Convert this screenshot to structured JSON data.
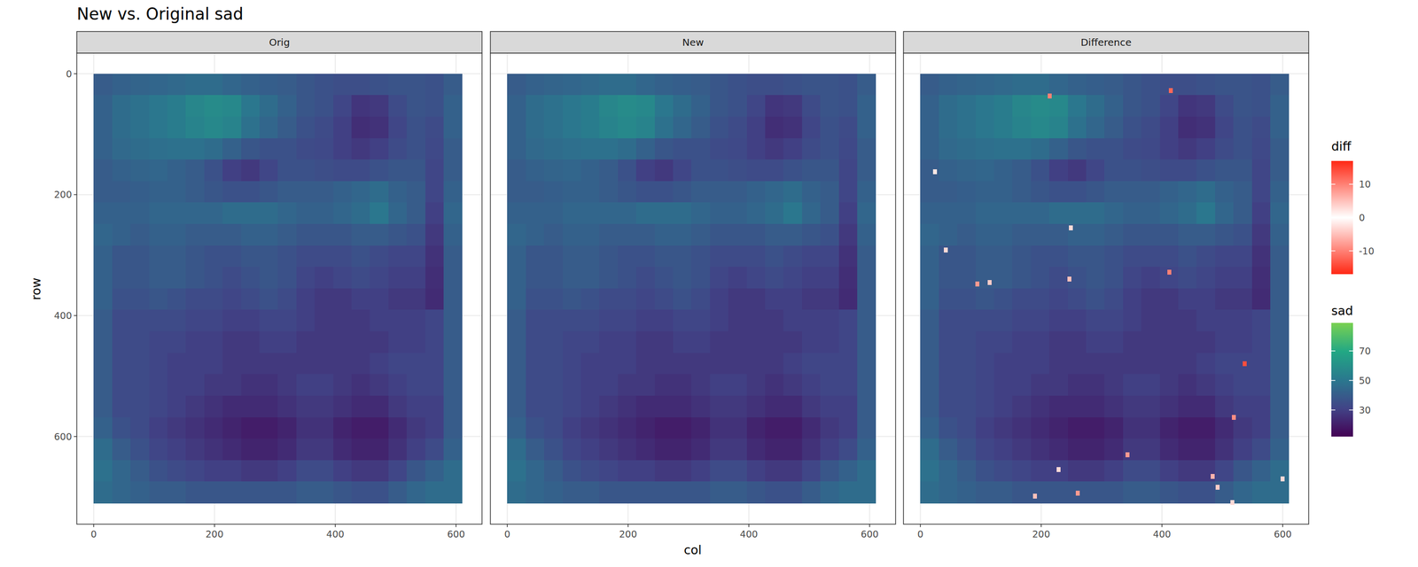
{
  "chart_data": {
    "type": "heatmap",
    "title": "New vs. Original sad",
    "x_label": "col",
    "y_label": "row",
    "panels": [
      "Orig",
      "New",
      "Difference"
    ],
    "xlim": [
      -28,
      643
    ],
    "ylim": [
      -34,
      745
    ],
    "xticks": [
      0,
      200,
      400,
      600
    ],
    "yticks": [
      0,
      200,
      400,
      600
    ],
    "grid": true,
    "sad": {
      "title": "sad",
      "range": [
        12,
        89
      ],
      "ticks": [
        30,
        50,
        70
      ],
      "x_edges": [
        0,
        30.5,
        61,
        91.5,
        122,
        152.5,
        183,
        213.5,
        244,
        274.5,
        305,
        335.5,
        366,
        396.5,
        427,
        457.5,
        488,
        518.5,
        549,
        579.5,
        610
      ],
      "y_edges": [
        0,
        35.5,
        71,
        106.5,
        142,
        177.5,
        213,
        248.5,
        284,
        319.5,
        355,
        390.5,
        426,
        461.5,
        497,
        532.5,
        568,
        603.5,
        639,
        674.5,
        710
      ],
      "values": [
        [
          40,
          42,
          43,
          44,
          45,
          46,
          46,
          44,
          42,
          41,
          40,
          38,
          36,
          35,
          35,
          36,
          37,
          37,
          36,
          40
        ],
        [
          42,
          46,
          48,
          50,
          52,
          56,
          58,
          57,
          50,
          46,
          42,
          38,
          36,
          32,
          27,
          28,
          34,
          37,
          36,
          42
        ],
        [
          42,
          46,
          48,
          50,
          52,
          55,
          57,
          55,
          48,
          44,
          40,
          36,
          34,
          30,
          25,
          26,
          32,
          36,
          34,
          42
        ],
        [
          42,
          45,
          46,
          47,
          48,
          48,
          46,
          42,
          38,
          36,
          36,
          34,
          33,
          30,
          28,
          30,
          34,
          36,
          33,
          40
        ],
        [
          40,
          42,
          43,
          44,
          42,
          40,
          36,
          30,
          28,
          32,
          36,
          36,
          35,
          34,
          34,
          36,
          38,
          38,
          32,
          40
        ],
        [
          40,
          40,
          41,
          42,
          42,
          40,
          38,
          36,
          36,
          38,
          40,
          40,
          40,
          42,
          44,
          46,
          42,
          40,
          32,
          42
        ],
        [
          42,
          42,
          42,
          44,
          44,
          44,
          44,
          46,
          46,
          46,
          44,
          42,
          42,
          44,
          46,
          50,
          44,
          40,
          30,
          44
        ],
        [
          44,
          42,
          40,
          42,
          42,
          40,
          40,
          40,
          42,
          42,
          40,
          38,
          38,
          38,
          40,
          40,
          38,
          36,
          28,
          42
        ],
        [
          42,
          38,
          38,
          40,
          40,
          38,
          36,
          36,
          38,
          38,
          36,
          34,
          34,
          34,
          36,
          34,
          32,
          32,
          26,
          40
        ],
        [
          42,
          38,
          38,
          40,
          40,
          38,
          36,
          34,
          36,
          38,
          36,
          32,
          30,
          32,
          34,
          32,
          30,
          30,
          25,
          40
        ],
        [
          42,
          36,
          36,
          38,
          36,
          34,
          34,
          32,
          34,
          36,
          34,
          30,
          28,
          28,
          30,
          30,
          28,
          28,
          24,
          40
        ],
        [
          40,
          34,
          34,
          34,
          34,
          32,
          32,
          30,
          30,
          32,
          32,
          30,
          28,
          28,
          28,
          30,
          30,
          30,
          32,
          40
        ],
        [
          40,
          34,
          34,
          32,
          32,
          30,
          30,
          28,
          28,
          30,
          30,
          28,
          28,
          28,
          28,
          28,
          30,
          30,
          32,
          40
        ],
        [
          40,
          34,
          34,
          32,
          30,
          30,
          30,
          28,
          28,
          28,
          28,
          28,
          28,
          28,
          28,
          30,
          32,
          32,
          32,
          40
        ],
        [
          40,
          34,
          34,
          32,
          30,
          30,
          28,
          28,
          26,
          26,
          28,
          30,
          30,
          28,
          26,
          28,
          30,
          32,
          32,
          40
        ],
        [
          40,
          34,
          34,
          32,
          30,
          28,
          26,
          24,
          24,
          24,
          26,
          28,
          28,
          26,
          24,
          24,
          28,
          30,
          30,
          40
        ],
        [
          42,
          36,
          34,
          30,
          28,
          26,
          24,
          22,
          20,
          20,
          22,
          26,
          26,
          22,
          20,
          20,
          24,
          28,
          30,
          40
        ],
        [
          46,
          40,
          36,
          32,
          30,
          28,
          26,
          24,
          22,
          22,
          24,
          28,
          28,
          24,
          22,
          22,
          26,
          30,
          34,
          42
        ],
        [
          48,
          44,
          40,
          36,
          34,
          32,
          30,
          30,
          28,
          28,
          30,
          34,
          34,
          30,
          28,
          28,
          32,
          38,
          42,
          46
        ],
        [
          46,
          44,
          42,
          40,
          40,
          38,
          38,
          38,
          38,
          38,
          38,
          40,
          40,
          38,
          36,
          36,
          40,
          44,
          46,
          46
        ]
      ]
    },
    "diff": {
      "title": "diff",
      "range": [
        -17,
        17
      ],
      "ticks": [
        -10,
        0,
        10
      ],
      "col": [
        214,
        415,
        24,
        249,
        42,
        94,
        115,
        247,
        412,
        537,
        519,
        343,
        229,
        484,
        492,
        600,
        261,
        190,
        517
      ],
      "row": [
        37,
        28,
        162,
        255,
        292,
        348,
        345,
        340,
        328,
        480,
        568,
        630,
        655,
        666,
        684,
        670,
        694,
        699,
        709
      ],
      "values": [
        10,
        12,
        2,
        3,
        3,
        8,
        4,
        5,
        10,
        14,
        9,
        8,
        3,
        6,
        4,
        3,
        8,
        5,
        3
      ]
    }
  }
}
